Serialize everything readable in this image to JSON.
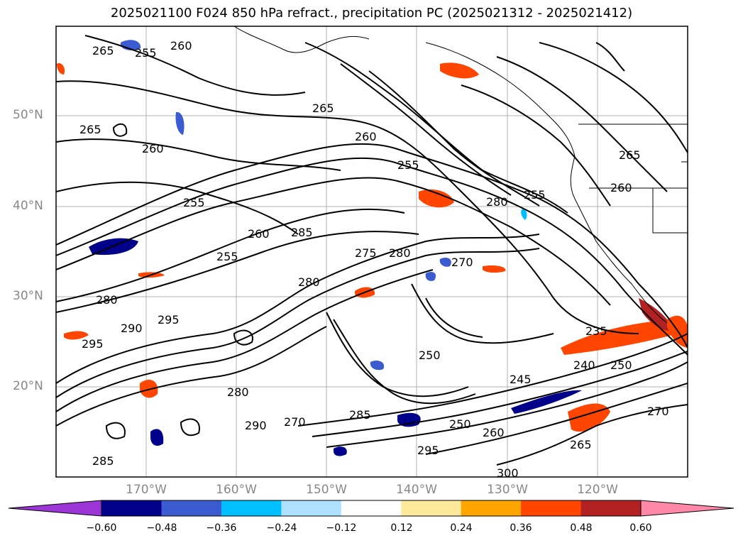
{
  "title": "2025021100 F024 850 hPa refract., precipitation PC (2025021312 - 2025021412)",
  "lat_labels": [
    "50°N",
    "40°N",
    "30°N",
    "20°N"
  ],
  "lon_labels": [
    "170°W",
    "160°W",
    "150°W",
    "140°W",
    "130°W",
    "120°W"
  ],
  "colorbar": {
    "colors": [
      "#9b35d6",
      "#00008b",
      "#3b5bd0",
      "#00bfff",
      "#aee0ff",
      "#ffffff",
      "#ffe99a",
      "#ffa500",
      "#ff4500",
      "#b22222",
      "#ff88a8"
    ],
    "ticks": [
      "−0.60",
      "−0.48",
      "−0.36",
      "−0.24",
      "−0.12",
      "0.12",
      "0.24",
      "0.36",
      "0.48",
      "0.60"
    ]
  },
  "contour_labels": [
    "265",
    "255",
    "260",
    "265",
    "260",
    "255",
    "260",
    "265",
    "260",
    "280",
    "255",
    "285",
    "260",
    "255",
    "280",
    "275",
    "280",
    "270",
    "280",
    "295",
    "290",
    "295",
    "285",
    "280",
    "270",
    "245",
    "240",
    "235",
    "250",
    "260",
    "265",
    "290",
    "285",
    "295",
    "300",
    "250",
    "255",
    "265",
    "270",
    "250"
  ]
}
